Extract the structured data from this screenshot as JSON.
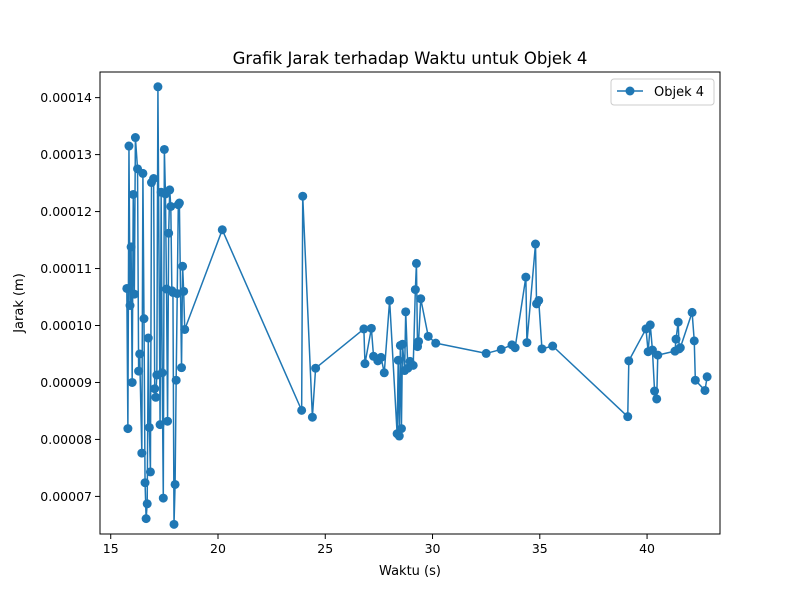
{
  "chart_data": {
    "type": "line",
    "title": "Grafik Jarak terhadap Waktu untuk Objek 4",
    "xlabel": "Waktu (s)",
    "ylabel": "Jarak (m)",
    "xlim": [
      14.5,
      43.4
    ],
    "ylim": [
      6.34e-05,
      0.0001445
    ],
    "xticks": [
      15,
      20,
      25,
      30,
      35,
      40
    ],
    "xtick_labels": [
      "15",
      "20",
      "25",
      "30",
      "35",
      "40"
    ],
    "yticks": [
      7e-05,
      8e-05,
      9e-05,
      0.0001,
      0.00011,
      0.00012,
      0.00013,
      0.00014
    ],
    "ytick_labels": [
      "0.00007",
      "0.00008",
      "0.00009",
      "0.00010",
      "0.00011",
      "0.00012",
      "0.00013",
      "0.00014"
    ],
    "grid": false,
    "legend_position": "upper right",
    "series": [
      {
        "name": "Objek 4",
        "color": "#1f77b4",
        "marker": "circle",
        "x": [
          15.75,
          15.8,
          15.85,
          15.9,
          15.95,
          16.0,
          16.05,
          16.1,
          16.15,
          16.25,
          16.3,
          16.35,
          16.45,
          16.5,
          16.55,
          16.6,
          16.65,
          16.7,
          16.75,
          16.8,
          16.85,
          16.9,
          17.0,
          17.05,
          17.1,
          17.15,
          17.2,
          17.3,
          17.35,
          17.4,
          17.45,
          17.5,
          17.55,
          17.6,
          17.65,
          17.7,
          17.75,
          17.8,
          17.85,
          17.9,
          17.95,
          18.0,
          18.05,
          18.1,
          18.15,
          18.2,
          18.3,
          18.35,
          18.4,
          18.45,
          20.2,
          23.9,
          23.95,
          24.4,
          24.55,
          26.8,
          26.85,
          27.15,
          27.25,
          27.45,
          27.6,
          27.75,
          28.0,
          28.35,
          28.4,
          28.45,
          28.5,
          28.55,
          28.6,
          28.7,
          28.75,
          28.85,
          28.95,
          29.1,
          29.2,
          29.25,
          29.3,
          29.35,
          29.45,
          29.8,
          30.15,
          32.5,
          33.2,
          33.7,
          33.85,
          34.35,
          34.4,
          34.8,
          34.85,
          34.95,
          35.1,
          35.6,
          39.1,
          39.15,
          39.95,
          40.05,
          40.15,
          40.25,
          40.35,
          40.45,
          40.5,
          41.3,
          41.35,
          41.45,
          41.5,
          41.55,
          42.1,
          42.2,
          42.25,
          42.7,
          42.8
        ],
        "y": [
          0.0001065,
          8.19e-05,
          0.0001315,
          0.0001035,
          0.0001138,
          9e-05,
          0.000123,
          0.0001055,
          0.000133,
          0.0001275,
          9.2e-05,
          9.5e-05,
          7.76e-05,
          0.0001267,
          0.0001012,
          7.24e-05,
          6.61e-05,
          6.87e-05,
          9.78e-05,
          8.21e-05,
          7.43e-05,
          0.0001251,
          0.0001258,
          8.89e-05,
          8.74e-05,
          9.13e-05,
          0.0001419,
          8.26e-05,
          0.0001234,
          9.17e-05,
          6.97e-05,
          0.0001309,
          0.0001231,
          0.0001064,
          8.32e-05,
          0.0001162,
          0.0001238,
          0.0001209,
          0.0001061,
          0.0001058,
          6.51e-05,
          7.21e-05,
          9.04e-05,
          0.0001056,
          0.0001212,
          0.0001215,
          9.26e-05,
          0.0001104,
          0.000106,
          9.93e-05,
          0.0001168,
          8.51e-05,
          0.0001227,
          8.39e-05,
          9.25e-05,
          9.94e-05,
          9.33e-05,
          9.95e-05,
          9.46e-05,
          9.38e-05,
          9.44e-05,
          9.17e-05,
          0.0001044,
          8.1e-05,
          9.39e-05,
          8.06e-05,
          9.65e-05,
          8.19e-05,
          9.67e-05,
          9.21e-05,
          0.0001024,
          9.25e-05,
          9.37e-05,
          9.3e-05,
          0.0001063,
          0.0001109,
          9.63e-05,
          9.72e-05,
          0.0001047,
          9.81e-05,
          9.69e-05,
          9.51e-05,
          9.58e-05,
          9.66e-05,
          9.61e-05,
          0.0001085,
          9.7e-05,
          0.0001143,
          0.0001038,
          0.0001044,
          9.59e-05,
          9.64e-05,
          8.4e-05,
          9.38e-05,
          9.94e-05,
          9.54e-05,
          0.0001001,
          9.57e-05,
          8.85e-05,
          8.71e-05,
          9.48e-05,
          9.55e-05,
          9.76e-05,
          0.0001006,
          9.59e-05,
          9.61e-05,
          0.0001023,
          9.73e-05,
          9.04e-05,
          8.86e-05,
          9.1e-05
        ]
      }
    ]
  }
}
